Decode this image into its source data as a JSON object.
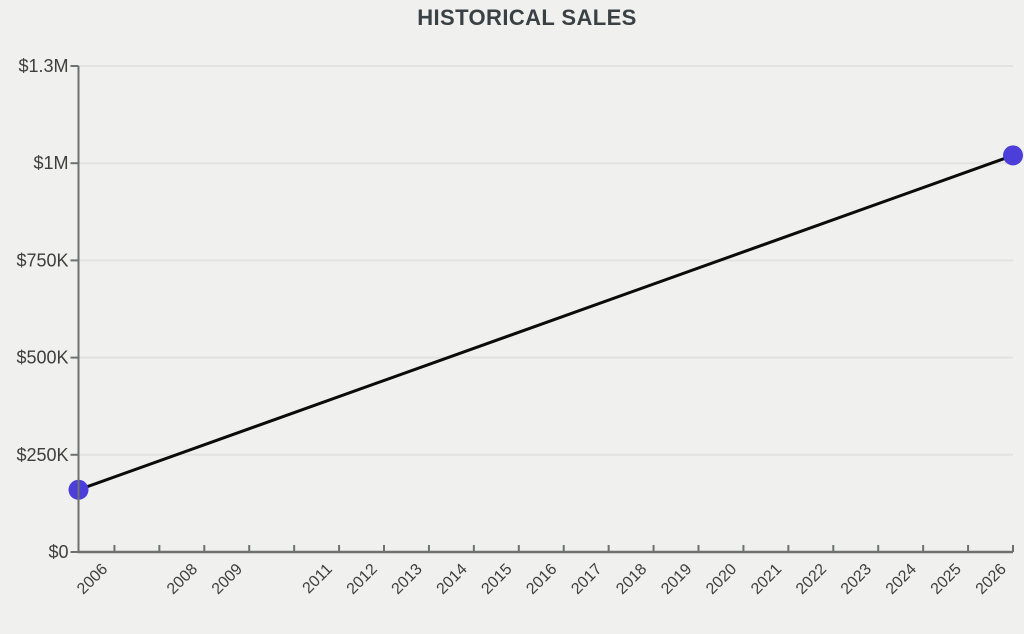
{
  "header": {
    "title": "HISTORICAL SALES"
  },
  "chart_data": {
    "type": "line",
    "title": "HISTORICAL SALES",
    "xlabel": "",
    "ylabel": "",
    "xlim": [
      2005.2,
      2026
    ],
    "ylim": [
      0,
      1250000
    ],
    "grid": "horizontal-only",
    "legend": "none",
    "x_tick_label_rotation_deg": -45,
    "series": [
      {
        "name": "Historical sales",
        "line_color": "#0b0b0b",
        "marker_color": "#4c3ed8",
        "points": [
          {
            "x": 2005.2,
            "y": 160000
          },
          {
            "x": 2026,
            "y": 1020000
          }
        ]
      }
    ],
    "y_ticks": [
      {
        "value": 0,
        "label": "$0"
      },
      {
        "value": 250000,
        "label": "$250K"
      },
      {
        "value": 500000,
        "label": "$500K"
      },
      {
        "value": 750000,
        "label": "$750K"
      },
      {
        "value": 1000000,
        "label": "$1M"
      },
      {
        "value": 1250000,
        "label": "$1.3M"
      }
    ],
    "x_ticks": [
      {
        "year": 2006,
        "label": "2006"
      },
      {
        "year": 2007,
        "label": ""
      },
      {
        "year": 2008,
        "label": "2008"
      },
      {
        "year": 2009,
        "label": "2009"
      },
      {
        "year": 2010,
        "label": ""
      },
      {
        "year": 2011,
        "label": "2011"
      },
      {
        "year": 2012,
        "label": "2012"
      },
      {
        "year": 2013,
        "label": "2013"
      },
      {
        "year": 2014,
        "label": "2014"
      },
      {
        "year": 2015,
        "label": "2015"
      },
      {
        "year": 2016,
        "label": "2016"
      },
      {
        "year": 2017,
        "label": "2017"
      },
      {
        "year": 2018,
        "label": "2018"
      },
      {
        "year": 2019,
        "label": "2019"
      },
      {
        "year": 2020,
        "label": "2020"
      },
      {
        "year": 2021,
        "label": "2021"
      },
      {
        "year": 2022,
        "label": "2022"
      },
      {
        "year": 2023,
        "label": "2023"
      },
      {
        "year": 2024,
        "label": "2024"
      },
      {
        "year": 2025,
        "label": "2025"
      },
      {
        "year": 2026,
        "label": "2026"
      }
    ],
    "colors": {
      "background": "#f0f0ee",
      "gridline": "#e2e2e0",
      "axis": "#6f7072",
      "tick_text": "#3e3e3e",
      "title_text": "#3a4145",
      "line": "#0b0b0b",
      "point": "#4c3ed8"
    }
  }
}
